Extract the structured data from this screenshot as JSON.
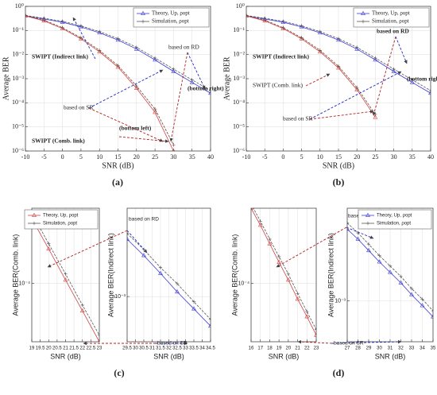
{
  "chart_data": [
    {
      "type": "line",
      "panel": "(a)",
      "xlabel": "SNR (dB)",
      "ylabel": "Average BER",
      "log_y": true,
      "grid": true,
      "legend": "upper right",
      "x": [
        -10,
        -5,
        0,
        5,
        10,
        15,
        20,
        25,
        30,
        35,
        40
      ],
      "xlim": [
        -10,
        40
      ],
      "xticks": [
        -10,
        -5,
        0,
        5,
        10,
        15,
        20,
        25,
        30,
        35,
        40
      ],
      "ylim": [
        1e-06,
        1
      ],
      "yticks": [
        {
          "value": 1e-06,
          "label": "10⁻⁶"
        },
        {
          "value": 1e-05,
          "label": "10⁻⁵"
        },
        {
          "value": 0.0001,
          "label": "10⁻⁴"
        },
        {
          "value": 0.001,
          "label": "10⁻³"
        },
        {
          "value": 0.01,
          "label": "10⁻²"
        },
        {
          "value": 0.1,
          "label": "10⁻¹"
        },
        {
          "value": 1,
          "label": "10⁰"
        }
      ],
      "series": [
        {
          "name": "Theory, Up, ρopt",
          "color": "#3a3ad8",
          "marker": "triangle",
          "values": [
            0.4,
            0.3,
            0.22,
            0.14,
            0.08,
            0.04,
            0.017,
            0.006,
            0.002,
            0.0007,
            0.00025
          ]
        },
        {
          "name": "Simulation, ρopt",
          "color": "#555555",
          "marker": "plus",
          "values": [
            0.42,
            0.32,
            0.24,
            0.155,
            0.09,
            0.046,
            0.02,
            0.0072,
            0.0025,
            0.0009,
            0.00032
          ]
        },
        {
          "color": "#d04545",
          "marker": "triangle",
          "values": [
            0.4,
            0.25,
            0.12,
            0.045,
            0.013,
            0.003,
            0.0004,
            4e-05,
            1e-06,
            null,
            null
          ]
        },
        {
          "color": "#6a4a3a",
          "marker": "plus",
          "values": [
            0.42,
            0.27,
            0.13,
            0.05,
            0.015,
            0.0035,
            0.0005,
            5.5e-05,
            1.8e-06,
            null,
            null
          ]
        }
      ],
      "annotations": [
        "SWIPT (Indirect link)",
        "based on RD",
        "(bottom right)",
        "based on SR",
        "(bottom left)",
        "SWIPT (Comb. link)"
      ]
    },
    {
      "type": "line",
      "panel": "(b)",
      "xlabel": "SNR (dB)",
      "ylabel": "Average BER",
      "log_y": true,
      "grid": true,
      "legend": "upper right",
      "x": [
        -10,
        -5,
        0,
        5,
        10,
        15,
        20,
        25,
        30,
        35,
        40
      ],
      "xlim": [
        -10,
        40
      ],
      "xticks": [
        -10,
        -5,
        0,
        5,
        10,
        15,
        20,
        25,
        30,
        35,
        40
      ],
      "ylim": [
        1e-06,
        1
      ],
      "yticks": [
        {
          "value": 1e-06,
          "label": "10⁻⁶"
        },
        {
          "value": 1e-05,
          "label": "10⁻⁵"
        },
        {
          "value": 0.0001,
          "label": "10⁻⁴"
        },
        {
          "value": 0.001,
          "label": "10⁻³"
        },
        {
          "value": 0.01,
          "label": "10⁻²"
        },
        {
          "value": 0.1,
          "label": "10⁻¹"
        },
        {
          "value": 1,
          "label": "10⁰"
        }
      ],
      "series": [
        {
          "name": "Theory, Up, ρopt",
          "color": "#3a3ad8",
          "marker": "triangle",
          "values": [
            0.4,
            0.3,
            0.22,
            0.14,
            0.08,
            0.04,
            0.017,
            0.006,
            0.002,
            0.0007,
            0.00025
          ]
        },
        {
          "name": "Simulation, ρopt",
          "color": "#555555",
          "marker": "plus",
          "values": [
            0.42,
            0.32,
            0.24,
            0.155,
            0.09,
            0.046,
            0.02,
            0.0072,
            0.0025,
            0.0009,
            0.00032
          ]
        },
        {
          "color": "#d04545",
          "marker": "triangle",
          "values": [
            0.4,
            0.25,
            0.12,
            0.045,
            0.013,
            0.0028,
            0.00035,
            2.5e-05,
            null,
            null,
            null
          ]
        },
        {
          "color": "#6a4a3a",
          "marker": "plus",
          "values": [
            0.42,
            0.27,
            0.13,
            0.05,
            0.015,
            0.0033,
            0.00043,
            3.3e-05,
            null,
            null,
            null
          ]
        }
      ],
      "annotations": [
        "SWIPT (Indirect link)",
        "SWIPT (Comb. link)",
        "based on RD",
        "based on SR",
        "(bottom right)"
      ]
    },
    {
      "type": "line",
      "panel": "(c)",
      "xlabel": "SNR (dB)",
      "ylabel": "Average BER(Comb. link)",
      "log_y": true,
      "grid": true,
      "legend": "upper right",
      "x": [
        19,
        20,
        21,
        22,
        23
      ],
      "xlim": [
        19,
        23
      ],
      "xticks": [
        19,
        19.5,
        20,
        20.5,
        21,
        21.5,
        22,
        22.5,
        23
      ],
      "ylim": [
        2e-05,
        0.0008
      ],
      "yticks": [
        {
          "value": 0.0001,
          "label": "10⁻⁴"
        }
      ],
      "series": [
        {
          "name": "Theory, Up, ρopt",
          "color": "#d04545",
          "marker": "triangle",
          "values": [
            0.0006,
            0.00026,
            0.00011,
            4.7e-05,
            2e-05
          ]
        },
        {
          "name": "Simulation, ρopt",
          "color": "#555555",
          "marker": "plus",
          "values": [
            0.0007,
            0.0003,
            0.00013,
            5.5e-05,
            2.4e-05
          ]
        }
      ]
    },
    {
      "type": "line",
      "xlabel": "SNR (dB)",
      "ylabel": "Average BER(Indirect link)",
      "log_y": true,
      "grid": true,
      "x": [
        29.5,
        30.5,
        31.5,
        32.5,
        33.5,
        34.5
      ],
      "xlim": [
        29.5,
        34.5
      ],
      "xticks": [
        29.5,
        30,
        30.5,
        31,
        31.5,
        32,
        32.5,
        33,
        33.5,
        34,
        34.5
      ],
      "ylim": [
        0.0004,
        0.006
      ],
      "yticks": [
        {
          "value": 0.001,
          "label": "10⁻³"
        }
      ],
      "series": [
        {
          "color": "#3a3ad8",
          "marker": "triangle",
          "values": [
            0.0032,
            0.0023,
            0.0016,
            0.0011,
            0.00078,
            0.00055
          ]
        },
        {
          "color": "#555555",
          "marker": "plus",
          "values": [
            0.0036,
            0.0026,
            0.0018,
            0.0013,
            0.0009,
            0.00063
          ]
        }
      ],
      "annotations": [
        "based on RD",
        "based on SR"
      ]
    },
    {
      "type": "line",
      "panel": "(d)",
      "xlabel": "SNR (dB)",
      "ylabel": "Average BER(Comb. link)",
      "log_y": true,
      "grid": true,
      "x": [
        16,
        17,
        18,
        19,
        20,
        21,
        22,
        23
      ],
      "xlim": [
        16,
        23
      ],
      "xticks": [
        16,
        17,
        18,
        19,
        20,
        21,
        22,
        23
      ],
      "ylim": [
        2e-05,
        0.0008
      ],
      "yticks": [
        {
          "value": 0.0001,
          "label": "10⁻⁴"
        }
      ],
      "series": [
        {
          "color": "#d04545",
          "marker": "triangle",
          "values": [
            0.0008,
            0.0005,
            0.0003,
            0.00018,
            0.00011,
            6.5e-05,
            4e-05,
            2.4e-05
          ]
        },
        {
          "color": "#555555",
          "marker": "plus",
          "values": [
            0.0009,
            0.00056,
            0.00034,
            0.00021,
            0.00013,
            7.6e-05,
            4.6e-05,
            2.8e-05
          ]
        }
      ]
    },
    {
      "type": "line",
      "xlabel": "SNR (dB)",
      "ylabel": "Average BER(Indirect link)",
      "log_y": true,
      "grid": true,
      "legend": "upper right",
      "x": [
        27,
        28,
        29,
        30,
        31,
        32,
        33,
        34,
        35
      ],
      "xlim": [
        27,
        35
      ],
      "xticks": [
        27,
        28,
        29,
        30,
        31,
        32,
        33,
        34,
        35
      ],
      "ylim": [
        0.0004,
        0.008
      ],
      "yticks": [
        {
          "value": 0.001,
          "label": "10⁻³"
        }
      ],
      "series": [
        {
          "name": "Theory, Up, ρopt",
          "color": "#3a3ad8",
          "marker": "triangle",
          "values": [
            0.005,
            0.004,
            0.0031,
            0.0024,
            0.0019,
            0.0015,
            0.00115,
            0.0009,
            0.0007
          ]
        },
        {
          "name": "Simulation, ρopt",
          "color": "#555555",
          "marker": "plus",
          "values": [
            0.00575,
            0.0046,
            0.00357,
            0.00276,
            0.00219,
            0.00173,
            0.00132,
            0.00104,
            0.0008
          ]
        }
      ],
      "annotations": [
        "based on RD",
        "based on SR"
      ]
    }
  ]
}
